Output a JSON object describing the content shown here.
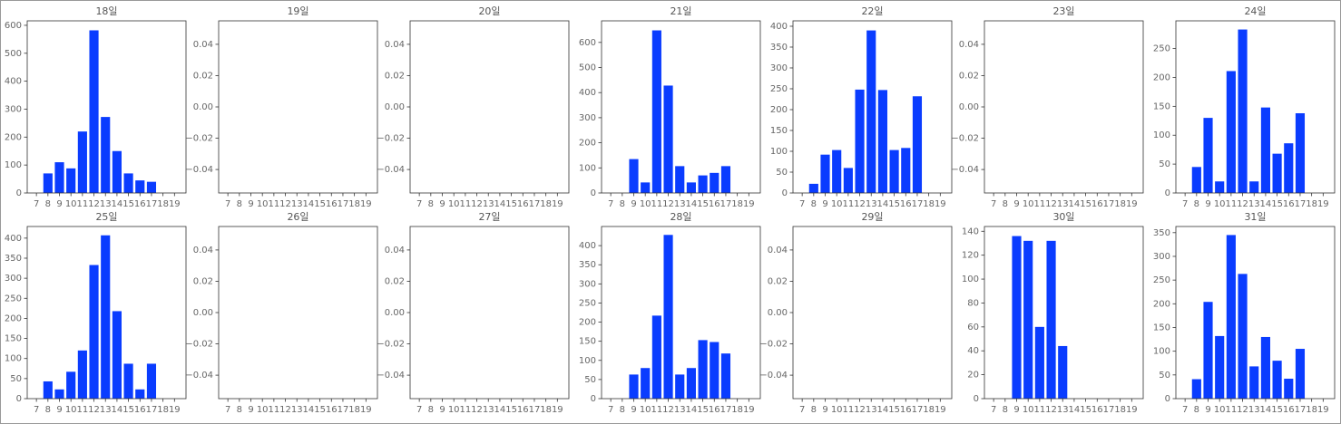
{
  "chart_data": [
    {
      "type": "bar",
      "title": "18일",
      "x": [
        8,
        9,
        10,
        11,
        12,
        13,
        14,
        15,
        16,
        17
      ],
      "values": [
        70,
        110,
        88,
        220,
        582,
        272,
        150,
        70,
        45,
        40
      ],
      "color": "#0a3cff",
      "xlim": [
        6.2,
        20.0
      ],
      "xticks": [
        7,
        8,
        9,
        10,
        11,
        12,
        13,
        14,
        15,
        16,
        17,
        18,
        19
      ],
      "ylim": [
        0,
        616
      ],
      "yticks": [
        0,
        100,
        200,
        300,
        400,
        500,
        600
      ]
    },
    {
      "type": "bar",
      "title": "19일",
      "x": [],
      "values": [],
      "color": "#0a3cff",
      "xlim": [
        6.2,
        20.0
      ],
      "xticks": [
        7,
        8,
        9,
        10,
        11,
        12,
        13,
        14,
        15,
        16,
        17,
        18,
        19
      ],
      "ylim": [
        -0.055,
        0.055
      ],
      "yticks": [
        {
          "value": -0.04,
          "label": "−0.04"
        },
        {
          "value": -0.02,
          "label": "−0.02"
        },
        {
          "value": 0,
          "label": "0.00"
        },
        0.02,
        0.04
      ]
    },
    {
      "type": "bar",
      "title": "20일",
      "x": [],
      "values": [],
      "color": "#0a3cff",
      "xlim": [
        6.2,
        20.0
      ],
      "xticks": [
        7,
        8,
        9,
        10,
        11,
        12,
        13,
        14,
        15,
        16,
        17,
        18,
        19
      ],
      "ylim": [
        -0.055,
        0.055
      ],
      "yticks": [
        {
          "value": -0.04,
          "label": "−0.04"
        },
        {
          "value": -0.02,
          "label": "−0.02"
        },
        {
          "value": 0,
          "label": "0.00"
        },
        0.02,
        0.04
      ]
    },
    {
      "type": "bar",
      "title": "21일",
      "x": [
        9,
        10,
        11,
        12,
        13,
        14,
        15,
        16,
        17
      ],
      "values": [
        135,
        42,
        648,
        428,
        107,
        42,
        70,
        80,
        107
      ],
      "color": "#0a3cff",
      "xlim": [
        6.2,
        20.0
      ],
      "xticks": [
        7,
        8,
        9,
        10,
        11,
        12,
        13,
        14,
        15,
        16,
        17,
        18,
        19
      ],
      "ylim": [
        0,
        686
      ],
      "yticks": [
        0,
        100,
        200,
        300,
        400,
        500,
        600
      ]
    },
    {
      "type": "bar",
      "title": "22일",
      "x": [
        8,
        9,
        10,
        11,
        12,
        13,
        14,
        15,
        16,
        17
      ],
      "values": [
        22,
        92,
        103,
        60,
        248,
        390,
        247,
        103,
        108,
        232
      ],
      "color": "#0a3cff",
      "xlim": [
        6.2,
        20.0
      ],
      "xticks": [
        7,
        8,
        9,
        10,
        11,
        12,
        13,
        14,
        15,
        16,
        17,
        18,
        19
      ],
      "ylim": [
        0,
        413
      ],
      "yticks": [
        0,
        50,
        100,
        150,
        200,
        250,
        300,
        350,
        400
      ]
    },
    {
      "type": "bar",
      "title": "23일",
      "x": [],
      "values": [],
      "color": "#0a3cff",
      "xlim": [
        6.2,
        20.0
      ],
      "xticks": [
        7,
        8,
        9,
        10,
        11,
        12,
        13,
        14,
        15,
        16,
        17,
        18,
        19
      ],
      "ylim": [
        -0.055,
        0.055
      ],
      "yticks": [
        {
          "value": -0.04,
          "label": "−0.04"
        },
        {
          "value": -0.02,
          "label": "−0.02"
        },
        {
          "value": 0,
          "label": "0.00"
        },
        0.02,
        0.04
      ]
    },
    {
      "type": "bar",
      "title": "24일",
      "x": [
        8,
        9,
        10,
        11,
        12,
        13,
        14,
        15,
        16,
        17
      ],
      "values": [
        45,
        130,
        20,
        211,
        283,
        20,
        148,
        68,
        86,
        138
      ],
      "color": "#0a3cff",
      "xlim": [
        6.2,
        20.0
      ],
      "xticks": [
        7,
        8,
        9,
        10,
        11,
        12,
        13,
        14,
        15,
        16,
        17,
        18,
        19
      ],
      "ylim": [
        0,
        298
      ],
      "yticks": [
        0,
        50,
        100,
        150,
        200,
        250
      ]
    },
    {
      "type": "bar",
      "title": "25일",
      "x": [
        8,
        9,
        10,
        11,
        12,
        13,
        14,
        15,
        16,
        17
      ],
      "values": [
        43,
        23,
        67,
        120,
        333,
        407,
        218,
        87,
        23,
        87
      ],
      "color": "#0a3cff",
      "xlim": [
        6.2,
        20.0
      ],
      "xticks": [
        7,
        8,
        9,
        10,
        11,
        12,
        13,
        14,
        15,
        16,
        17,
        18,
        19
      ],
      "ylim": [
        0,
        429
      ],
      "yticks": [
        0,
        50,
        100,
        150,
        200,
        250,
        300,
        350,
        400
      ]
    },
    {
      "type": "bar",
      "title": "26일",
      "x": [],
      "values": [],
      "color": "#0a3cff",
      "xlim": [
        6.2,
        20.0
      ],
      "xticks": [
        7,
        8,
        9,
        10,
        11,
        12,
        13,
        14,
        15,
        16,
        17,
        18,
        19
      ],
      "ylim": [
        -0.055,
        0.055
      ],
      "yticks": [
        {
          "value": -0.04,
          "label": "−0.04"
        },
        {
          "value": -0.02,
          "label": "−0.02"
        },
        {
          "value": 0,
          "label": "0.00"
        },
        0.02,
        0.04
      ]
    },
    {
      "type": "bar",
      "title": "27일",
      "x": [],
      "values": [],
      "color": "#0a3cff",
      "xlim": [
        6.2,
        20.0
      ],
      "xticks": [
        7,
        8,
        9,
        10,
        11,
        12,
        13,
        14,
        15,
        16,
        17,
        18,
        19
      ],
      "ylim": [
        -0.055,
        0.055
      ],
      "yticks": [
        {
          "value": -0.04,
          "label": "−0.04"
        },
        {
          "value": -0.02,
          "label": "−0.02"
        },
        {
          "value": 0,
          "label": "0.00"
        },
        0.02,
        0.04
      ]
    },
    {
      "type": "bar",
      "title": "28일",
      "x": [
        9,
        10,
        11,
        12,
        13,
        14,
        15,
        16,
        17
      ],
      "values": [
        63,
        80,
        217,
        428,
        63,
        80,
        153,
        148,
        118
      ],
      "color": "#0a3cff",
      "xlim": [
        6.2,
        20.0
      ],
      "xticks": [
        7,
        8,
        9,
        10,
        11,
        12,
        13,
        14,
        15,
        16,
        17,
        18,
        19
      ],
      "ylim": [
        0,
        450
      ],
      "yticks": [
        0,
        50,
        100,
        150,
        200,
        250,
        300,
        350,
        400
      ]
    },
    {
      "type": "bar",
      "title": "29일",
      "x": [],
      "values": [],
      "color": "#0a3cff",
      "xlim": [
        6.2,
        20.0
      ],
      "xticks": [
        7,
        8,
        9,
        10,
        11,
        12,
        13,
        14,
        15,
        16,
        17,
        18,
        19
      ],
      "ylim": [
        -0.055,
        0.055
      ],
      "yticks": [
        {
          "value": -0.04,
          "label": "−0.04"
        },
        {
          "value": -0.02,
          "label": "−0.02"
        },
        {
          "value": 0,
          "label": "0.00"
        },
        0.02,
        0.04
      ]
    },
    {
      "type": "bar",
      "title": "30일",
      "x": [
        9,
        10,
        11,
        12,
        13
      ],
      "values": [
        136,
        132,
        60,
        132,
        44
      ],
      "color": "#0a3cff",
      "xlim": [
        6.2,
        20.0
      ],
      "xticks": [
        7,
        8,
        9,
        10,
        11,
        12,
        13,
        14,
        15,
        16,
        17,
        18,
        19
      ],
      "ylim": [
        0,
        144
      ],
      "yticks": [
        0,
        20,
        40,
        60,
        80,
        100,
        120,
        140
      ]
    },
    {
      "type": "bar",
      "title": "31일",
      "x": [
        8,
        9,
        10,
        11,
        12,
        13,
        14,
        15,
        16,
        17
      ],
      "values": [
        41,
        204,
        132,
        345,
        263,
        68,
        130,
        80,
        42,
        105
      ],
      "color": "#0a3cff",
      "xlim": [
        6.2,
        20.0
      ],
      "xticks": [
        7,
        8,
        9,
        10,
        11,
        12,
        13,
        14,
        15,
        16,
        17,
        18,
        19
      ],
      "ylim": [
        0,
        363
      ],
      "yticks": [
        0,
        50,
        100,
        150,
        200,
        250,
        300,
        350
      ]
    }
  ]
}
